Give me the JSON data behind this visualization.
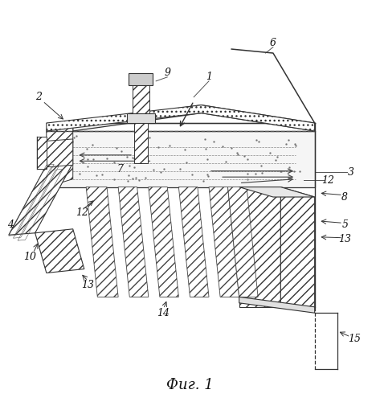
{
  "title": "Фиг. 1",
  "title_fontsize": 13,
  "background_color": "#ffffff",
  "lc": "#333333",
  "lw": 1.0,
  "fontsize": 9,
  "fig_width": 4.73,
  "fig_height": 5.0,
  "dpi": 100
}
